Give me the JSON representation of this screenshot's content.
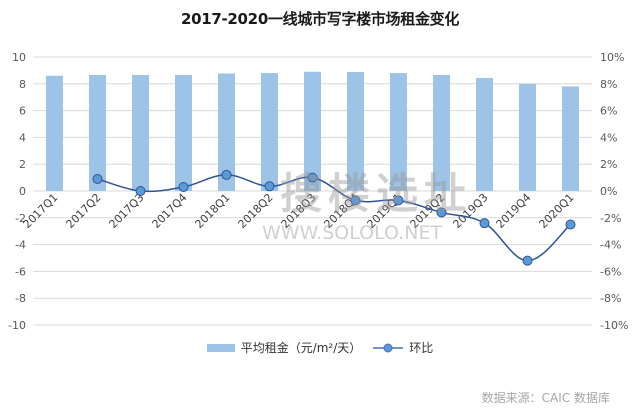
{
  "chart_data": {
    "type": "bar+line",
    "title": "2017-2020一线城市写字楼市场租金变化",
    "categories": [
      "2017Q1",
      "2017Q2",
      "2017Q3",
      "2017Q4",
      "2018Q1",
      "2018Q2",
      "2018Q3",
      "2018Q4",
      "2019Q1",
      "2019Q2",
      "2019Q3",
      "2019Q4",
      "2020Q1"
    ],
    "series": [
      {
        "name": "平均租金（元/m²/天）",
        "type": "bar",
        "axis": "left",
        "color": "#9dc3e6",
        "values": [
          8.6,
          8.66,
          8.66,
          8.66,
          8.77,
          8.8,
          8.9,
          8.88,
          8.8,
          8.66,
          8.43,
          8.0,
          7.8
        ]
      },
      {
        "name": "环比",
        "type": "line",
        "axis": "right",
        "unit": "%",
        "color": "#4472c4",
        "values": [
          null,
          0.9,
          0.0,
          0.3,
          1.2,
          0.35,
          1.0,
          -0.7,
          -0.7,
          -1.6,
          -2.4,
          -5.2,
          -2.5
        ]
      }
    ],
    "left_axis": {
      "ylim": [
        -10,
        10
      ],
      "ticks": [
        "10",
        "8",
        "6",
        "4",
        "2",
        "0",
        "-2",
        "-4",
        "-6",
        "-8",
        "-10"
      ]
    },
    "right_axis": {
      "ylim": [
        -10,
        10
      ],
      "ticks": [
        "10%",
        "8%",
        "6%",
        "4%",
        "2%",
        "0%",
        "-2%",
        "-4%",
        "-6%",
        "-8%",
        "-10%"
      ]
    },
    "grid": true,
    "legend_position": "bottom"
  },
  "legend": {
    "bar_label": "平均租金（元/m²/天）",
    "line_label": "环比"
  },
  "source": "数据来源：CAIC 数据库",
  "watermark": {
    "text": "搜楼选址",
    "url": "WWW.SOLOLO.NET"
  }
}
